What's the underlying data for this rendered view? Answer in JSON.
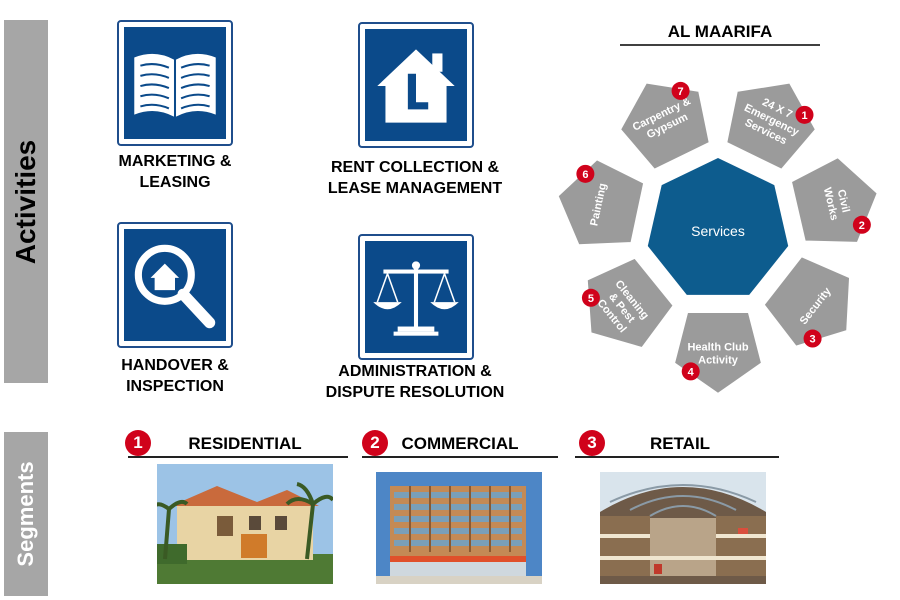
{
  "sidebar": {
    "activities": "Activities",
    "segments": "Segments"
  },
  "activities": [
    {
      "label_line1": "MARKETING &",
      "label_line2": "LEASING",
      "icon": "open-book-icon"
    },
    {
      "label_line1": "RENT COLLECTION &",
      "label_line2": "LEASE MANAGEMENT",
      "icon": "house-l-icon"
    },
    {
      "label_line1": "HANDOVER &",
      "label_line2": "INSPECTION",
      "icon": "magnifier-house-icon"
    },
    {
      "label_line1": "ADMINISTRATION &",
      "label_line2": "DISPUTE RESOLUTION",
      "icon": "scales-icon"
    }
  ],
  "services": {
    "title": "AL MAARIFA",
    "center": "Services",
    "items": [
      {
        "num": "1",
        "lines": [
          "24 X 7",
          "Emergency",
          "Services"
        ]
      },
      {
        "num": "2",
        "lines": [
          "Civil",
          "Works"
        ]
      },
      {
        "num": "3",
        "lines": [
          "Security"
        ]
      },
      {
        "num": "4",
        "lines": [
          "Health Club",
          "Activity"
        ]
      },
      {
        "num": "5",
        "lines": [
          "Cleaning",
          "& Pest",
          "Control"
        ]
      },
      {
        "num": "6",
        "lines": [
          "Painting"
        ]
      },
      {
        "num": "7",
        "lines": [
          "Carpentry &",
          "Gypsum"
        ]
      }
    ],
    "colors": {
      "center": "#0d5c8e",
      "petal": "#9b9b9b",
      "badge": "#d0021b"
    }
  },
  "segments": [
    {
      "num": "1",
      "title": "RESIDENTIAL"
    },
    {
      "num": "2",
      "title": "COMMERCIAL"
    },
    {
      "num": "3",
      "title": "RETAIL"
    }
  ]
}
